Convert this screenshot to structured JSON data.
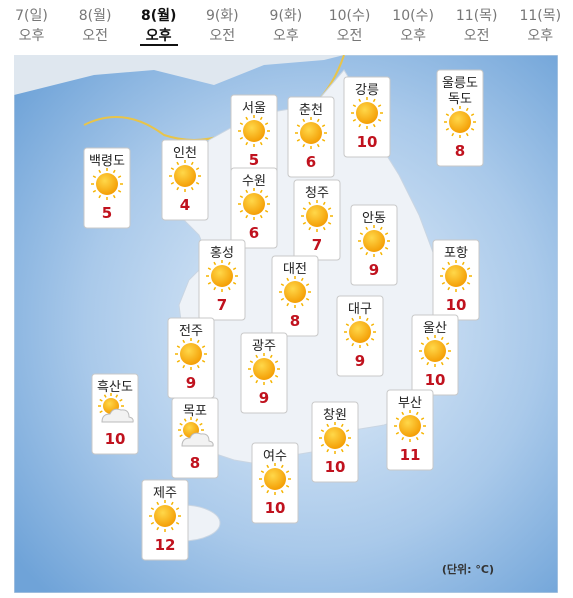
{
  "tabs": [
    {
      "date": "7(일)",
      "period": "오후"
    },
    {
      "date": "8(월)",
      "period": "오전"
    },
    {
      "date": "8(월)",
      "period": "오후"
    },
    {
      "date": "9(화)",
      "period": "오전"
    },
    {
      "date": "9(화)",
      "period": "오후"
    },
    {
      "date": "10(수)",
      "period": "오전"
    },
    {
      "date": "10(수)",
      "period": "오후"
    },
    {
      "date": "11(목)",
      "period": "오전"
    },
    {
      "date": "11(목)",
      "period": "오후"
    }
  ],
  "selected_tab": 2,
  "cities": [
    {
      "name": [
        "백령도"
      ],
      "temp": 5,
      "icon": "sunny"
    },
    {
      "name": [
        "인천"
      ],
      "temp": 4,
      "icon": "sunny"
    },
    {
      "name": [
        "서울"
      ],
      "temp": 5,
      "icon": "sunny"
    },
    {
      "name": [
        "수원"
      ],
      "temp": 6,
      "icon": "sunny"
    },
    {
      "name": [
        "춘천"
      ],
      "temp": 6,
      "icon": "sunny"
    },
    {
      "name": [
        "강릉"
      ],
      "temp": 10,
      "icon": "sunny"
    },
    {
      "name": [
        "울릉도",
        "독도"
      ],
      "temp": 8,
      "icon": "sunny"
    },
    {
      "name": [
        "청주"
      ],
      "temp": 7,
      "icon": "sunny"
    },
    {
      "name": [
        "안동"
      ],
      "temp": 9,
      "icon": "sunny"
    },
    {
      "name": [
        "홍성"
      ],
      "temp": 7,
      "icon": "sunny"
    },
    {
      "name": [
        "대전"
      ],
      "temp": 8,
      "icon": "sunny"
    },
    {
      "name": [
        "포항"
      ],
      "temp": 10,
      "icon": "sunny"
    },
    {
      "name": [
        "대구"
      ],
      "temp": 9,
      "icon": "sunny"
    },
    {
      "name": [
        "전주"
      ],
      "temp": 9,
      "icon": "sunny"
    },
    {
      "name": [
        "광주"
      ],
      "temp": 9,
      "icon": "sunny"
    },
    {
      "name": [
        "울산"
      ],
      "temp": 10,
      "icon": "sunny"
    },
    {
      "name": [
        "흑산도"
      ],
      "temp": 10,
      "icon": "partly-cloudy"
    },
    {
      "name": [
        "목포"
      ],
      "temp": 8,
      "icon": "partly-cloudy"
    },
    {
      "name": [
        "창원"
      ],
      "temp": 10,
      "icon": "sunny"
    },
    {
      "name": [
        "부산"
      ],
      "temp": 11,
      "icon": "sunny"
    },
    {
      "name": [
        "여수"
      ],
      "temp": 10,
      "icon": "sunny"
    },
    {
      "name": [
        "제주"
      ],
      "temp": 12,
      "icon": "sunny"
    }
  ],
  "unit_note": "(단위: °C)"
}
